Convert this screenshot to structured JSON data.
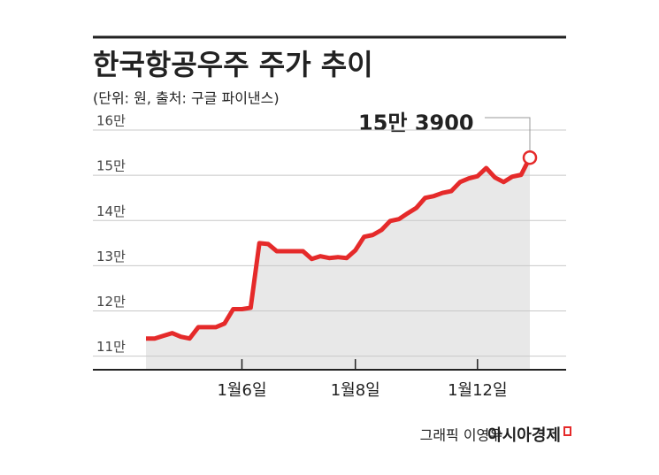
{
  "chart_data": {
    "type": "line",
    "title": "한국항공우주 주가 추이",
    "subtitle": "(단위: 원, 출처: 구글 파이낸스)",
    "annotation": "15만 3900",
    "credit": "그래픽 이영우",
    "publisher": "아시아경제",
    "categories": [
      null,
      null,
      null,
      null,
      null,
      null,
      null,
      null,
      null,
      null,
      null,
      "1월6일",
      null,
      null,
      null,
      null,
      null,
      null,
      null,
      null,
      null,
      null,
      null,
      null,
      "1월8일",
      null,
      null,
      null,
      null,
      null,
      null,
      null,
      null,
      null,
      null,
      null,
      null,
      null,
      "1월12일",
      null,
      null,
      null,
      null,
      null,
      null
    ],
    "series": [
      {
        "name": "한국항공우주",
        "color": "#e52a2a",
        "fill": "#e8e8e8",
        "values": [
          113900,
          113900,
          114500,
          115100,
          114300,
          113900,
          116400,
          116400,
          116400,
          117200,
          120400,
          120400,
          120700,
          135000,
          134800,
          133200,
          133200,
          133200,
          133200,
          131500,
          132100,
          131700,
          131900,
          131700,
          133400,
          136400,
          136800,
          137900,
          139900,
          140300,
          141600,
          142800,
          145000,
          145400,
          146100,
          146500,
          148500,
          149300,
          149800,
          151600,
          149500,
          148500,
          149700,
          150100,
          153900
        ]
      }
    ],
    "ylim": [
      107000,
      160000
    ],
    "yticks": [
      {
        "value": 110000,
        "label": "11만"
      },
      {
        "value": 120000,
        "label": "12만"
      },
      {
        "value": 130000,
        "label": "13만"
      },
      {
        "value": 140000,
        "label": "14만"
      },
      {
        "value": 150000,
        "label": "15만"
      },
      {
        "value": 160000,
        "label": "16만"
      }
    ],
    "grid": true
  }
}
